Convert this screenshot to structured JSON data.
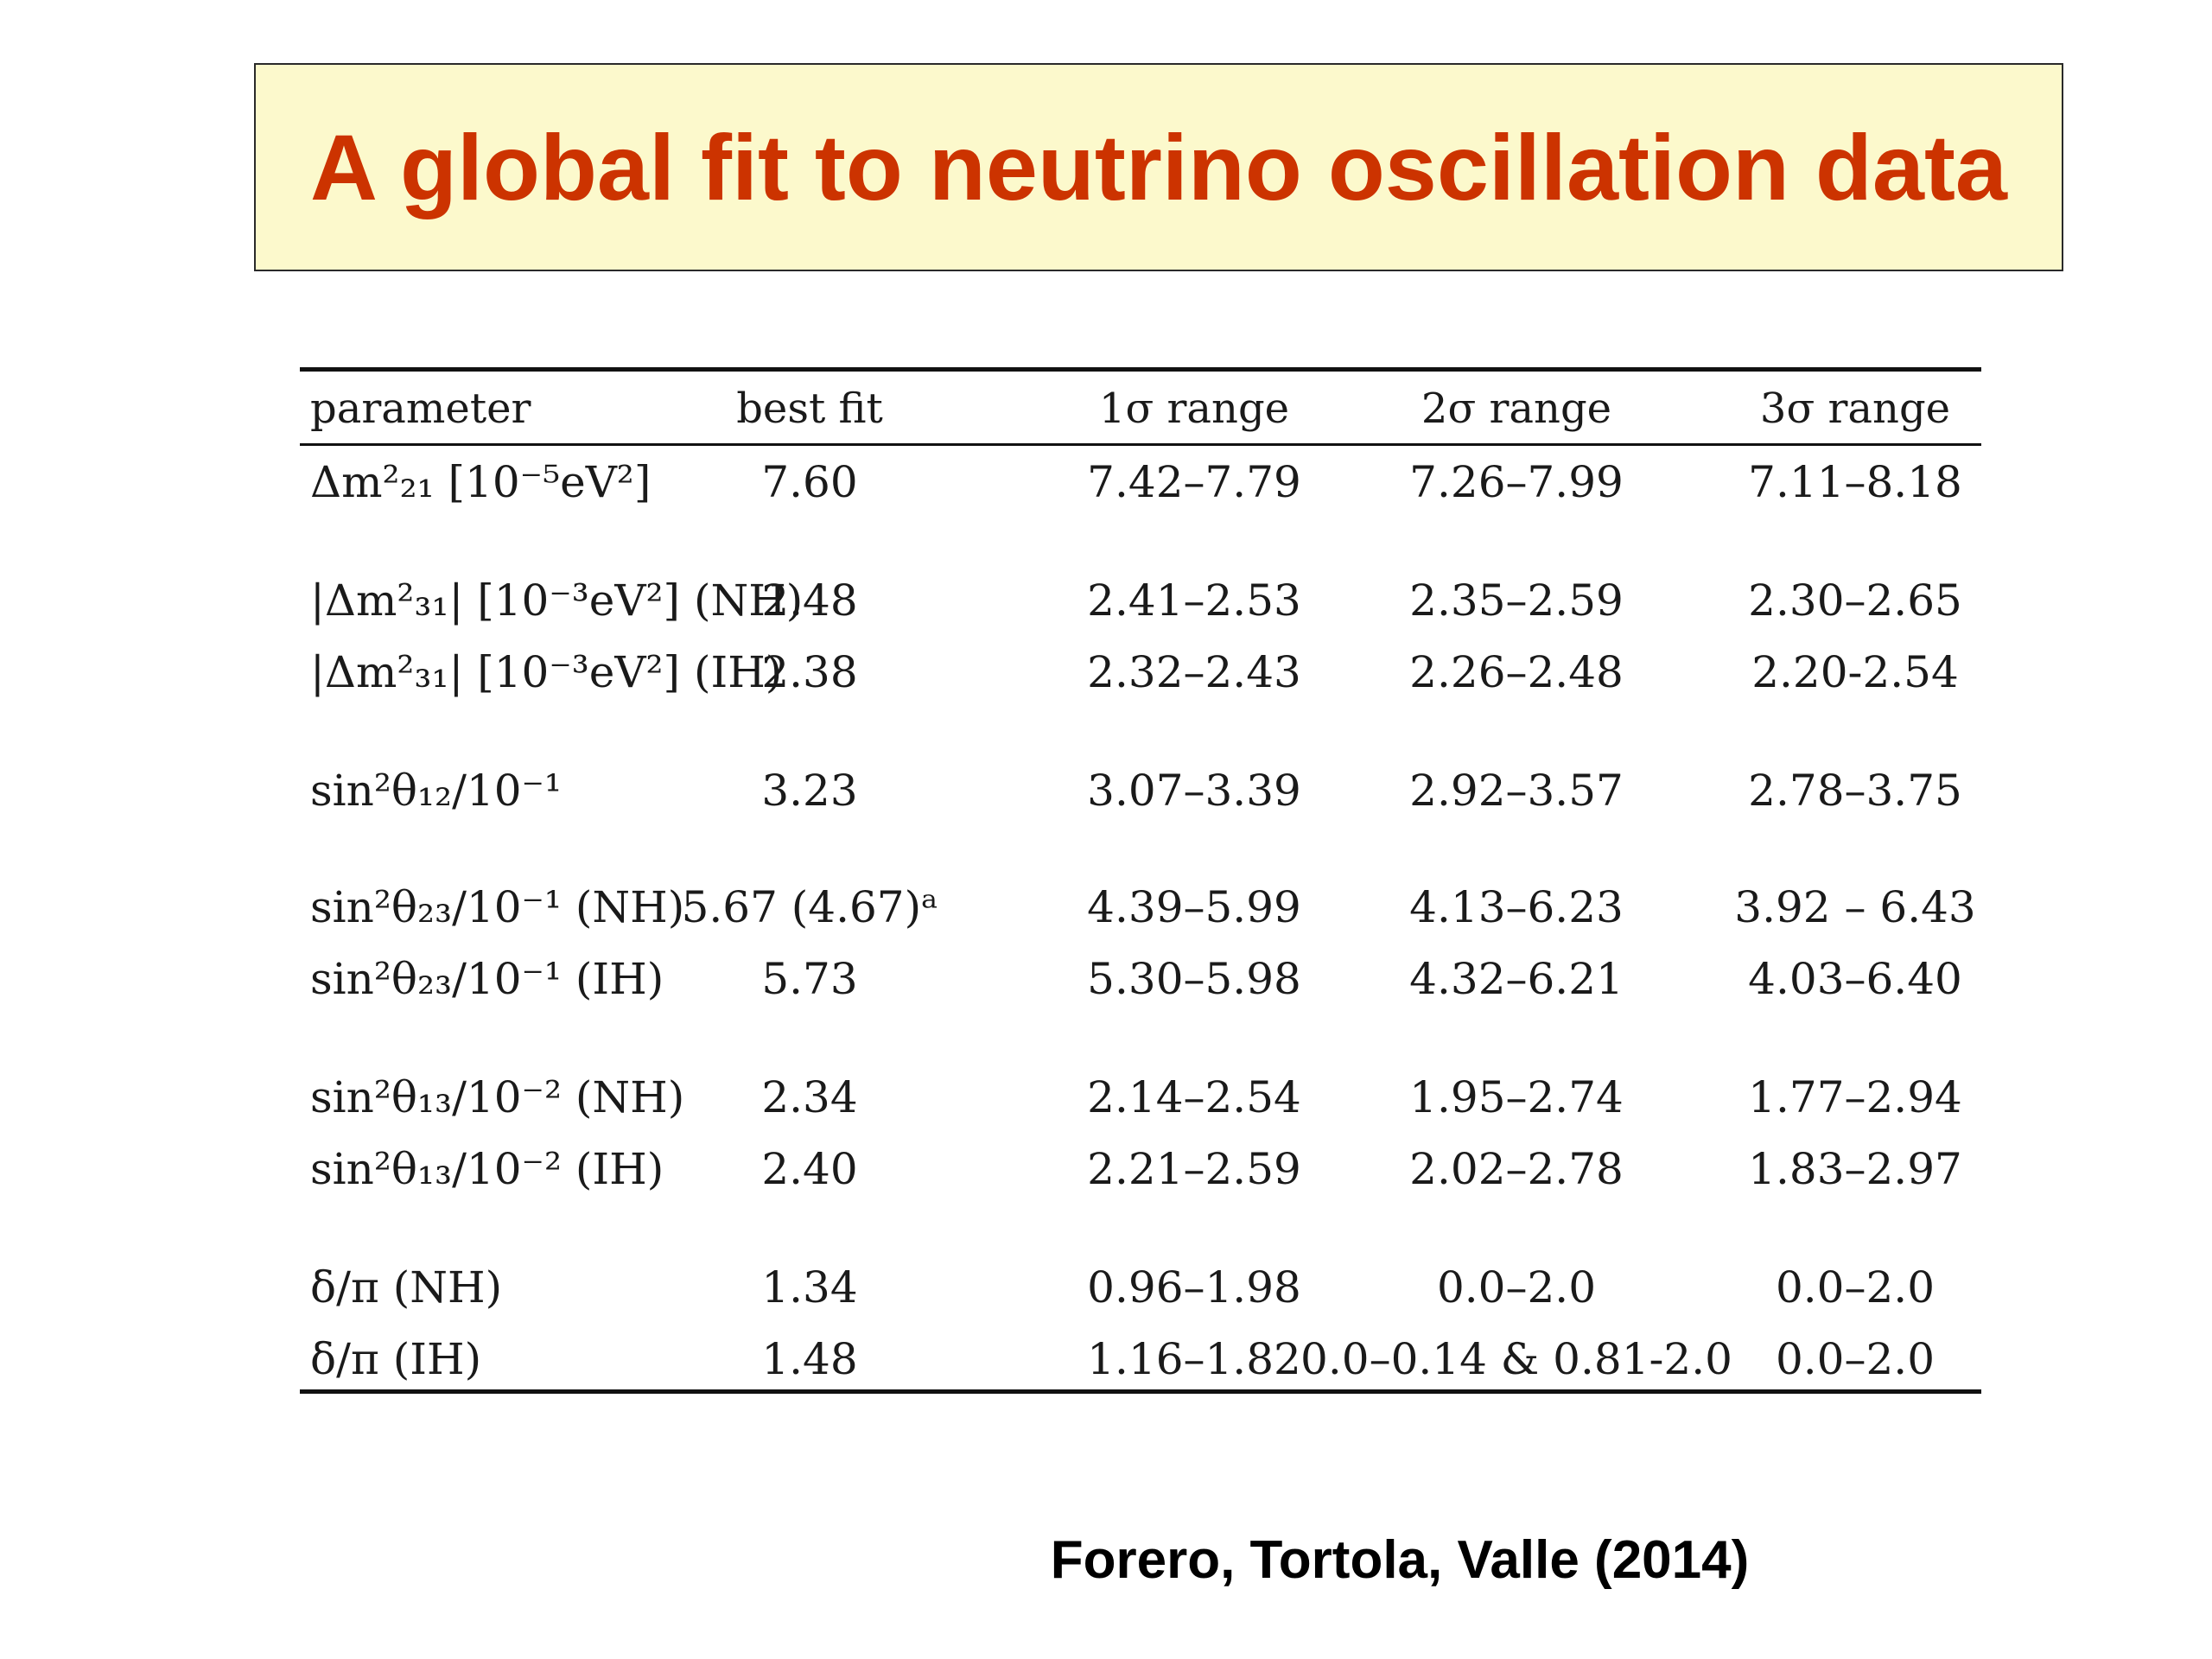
{
  "title": "A global fit to neutrino oscillation data",
  "table": {
    "headers": [
      "parameter",
      "best fit",
      "1σ range",
      "2σ range",
      "3σ range"
    ],
    "rows": [
      {
        "param": "Δm²₂₁ [10⁻⁵eV²]",
        "best": "7.60",
        "s1": "7.42–7.79",
        "s2": "7.26–7.99",
        "s3": "7.11–8.18"
      },
      {
        "param": "|Δm²₃₁| [10⁻³eV²] (NH)",
        "best": "2.48",
        "s1": "2.41–2.53",
        "s2": "2.35–2.59",
        "s3": "2.30–2.65"
      },
      {
        "param": "|Δm²₃₁| [10⁻³eV²] (IH)",
        "best": "2.38",
        "s1": "2.32–2.43",
        "s2": "2.26–2.48",
        "s3": "2.20-2.54"
      },
      {
        "param": "sin²θ₁₂/10⁻¹",
        "best": "3.23",
        "s1": "3.07–3.39",
        "s2": "2.92–3.57",
        "s3": "2.78–3.75"
      },
      {
        "param": "sin²θ₂₃/10⁻¹ (NH)",
        "best": "5.67 (4.67)ᵃ",
        "s1": "4.39–5.99",
        "s2": "4.13–6.23",
        "s3": "3.92 – 6.43"
      },
      {
        "param": "sin²θ₂₃/10⁻¹ (IH)",
        "best": "5.73",
        "s1": "5.30–5.98",
        "s2": "4.32–6.21",
        "s3": "4.03–6.40"
      },
      {
        "param": "sin²θ₁₃/10⁻² (NH)",
        "best": "2.34",
        "s1": "2.14–2.54",
        "s2": "1.95–2.74",
        "s3": "1.77–2.94"
      },
      {
        "param": "sin²θ₁₃/10⁻² (IH)",
        "best": "2.40",
        "s1": "2.21–2.59",
        "s2": "2.02–2.78",
        "s3": "1.83–2.97"
      },
      {
        "param": "δ/π (NH)",
        "best": "1.34",
        "s1": "0.96–1.98",
        "s2": "0.0–2.0",
        "s3": "0.0–2.0"
      },
      {
        "param": "δ/π (IH)",
        "best": "1.48",
        "s1": "1.16–1.82",
        "s2": "0.0–0.14 & 0.81-2.0",
        "s3": "0.0–2.0"
      }
    ]
  },
  "citation": "Forero, Tortola, Valle (2014)"
}
